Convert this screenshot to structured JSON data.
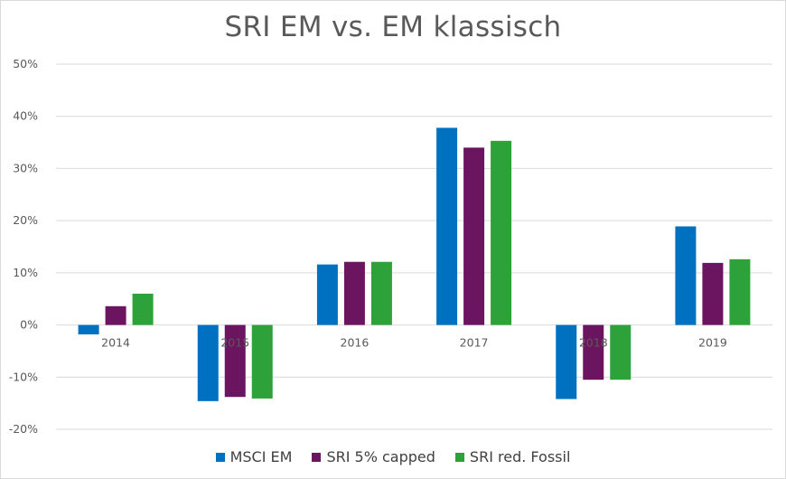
{
  "chart_data": {
    "type": "bar",
    "title": "SRI EM vs. EM klassisch",
    "categories": [
      "2014",
      "2015",
      "2016",
      "2017",
      "2018",
      "2019"
    ],
    "series": [
      {
        "name": "MSCI EM",
        "color": "#0070c0",
        "values": [
          -1.8,
          -14.6,
          11.6,
          37.8,
          -14.2,
          18.9
        ]
      },
      {
        "name": "SRI 5% capped",
        "color": "#6b1561",
        "values": [
          3.6,
          -13.8,
          12.1,
          34.0,
          -10.5,
          11.9
        ]
      },
      {
        "name": "SRI red. Fossil",
        "color": "#2ea23a",
        "values": [
          6.0,
          -14.1,
          12.1,
          35.3,
          -10.5,
          12.6
        ]
      }
    ],
    "ylim": [
      -20,
      50
    ],
    "yticks": [
      "-20%",
      "-10%",
      "0%",
      "10%",
      "20%",
      "30%",
      "40%",
      "50%"
    ],
    "grid": true,
    "legend_position": "bottom"
  }
}
